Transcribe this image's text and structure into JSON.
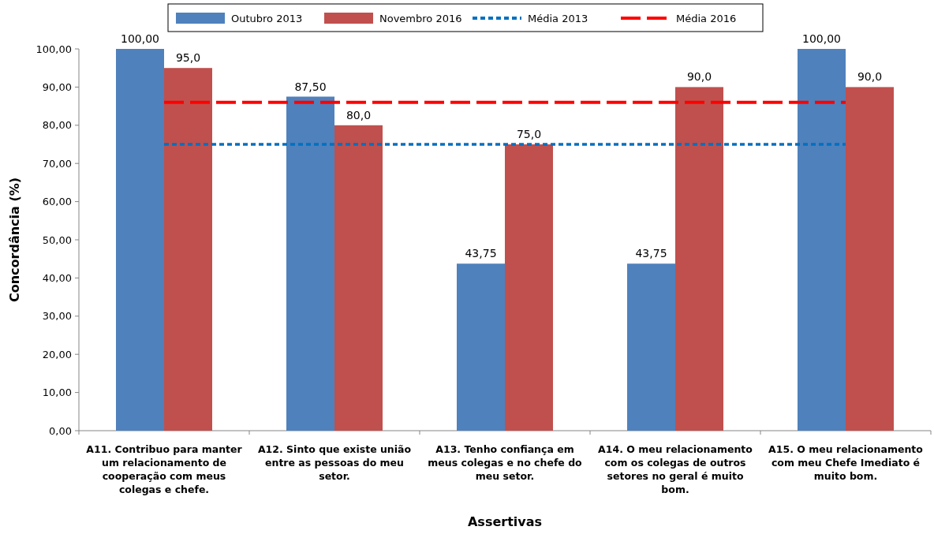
{
  "chart_data": {
    "type": "bar",
    "xlabel": "Assertivas",
    "ylabel": "Concordância (%)",
    "categories": [
      "A11. Contribuo para manter um relacionamento de cooperação com meus colegas e chefe.",
      "A12. Sinto que existe união entre as pessoas do meu setor.",
      "A13. Tenho confiança em meus colegas e no chefe do meu setor.",
      "A14. O meu relacionamento com os colegas de outros setores no geral é muito bom.",
      "A15. O meu relacionamento com meu Chefe Imediato é muito bom."
    ],
    "series": [
      {
        "name": "Outubro 2013",
        "color": "#4f81bd",
        "values": [
          100,
          87.5,
          43.75,
          43.75,
          100
        ],
        "value_labels": [
          "100,00",
          "87,50",
          "43,75",
          "43,75",
          "100,00"
        ]
      },
      {
        "name": "Novembro 2016",
        "color": "#c0504d",
        "values": [
          95,
          80,
          75,
          90,
          90
        ],
        "value_labels": [
          "95,0",
          "80,0",
          "75,0",
          "90,0",
          "90,0"
        ]
      },
      {
        "name": "Média 2013",
        "type": "line",
        "color": "#0070c0",
        "line_style": "dotted",
        "values": [
          75,
          75,
          75,
          75,
          75
        ]
      },
      {
        "name": "Média 2016",
        "type": "line",
        "color": "#ff0000",
        "line_style": "dashed",
        "values": [
          86,
          86,
          86,
          86,
          86
        ]
      }
    ],
    "ylim": [
      0,
      100
    ],
    "yticks": [
      {
        "value": 0,
        "label": "0,00"
      },
      {
        "value": 10,
        "label": "10,00"
      },
      {
        "value": 20,
        "label": "20,00"
      },
      {
        "value": 30,
        "label": "30,00"
      },
      {
        "value": 40,
        "label": "40,00"
      },
      {
        "value": 50,
        "label": "50,00"
      },
      {
        "value": 60,
        "label": "60,00"
      },
      {
        "value": 70,
        "label": "70,00"
      },
      {
        "value": 80,
        "label": "80,00"
      },
      {
        "value": 90,
        "label": "90,00"
      },
      {
        "value": 100,
        "label": "100,00"
      }
    ],
    "grid": false,
    "legend": "top"
  }
}
